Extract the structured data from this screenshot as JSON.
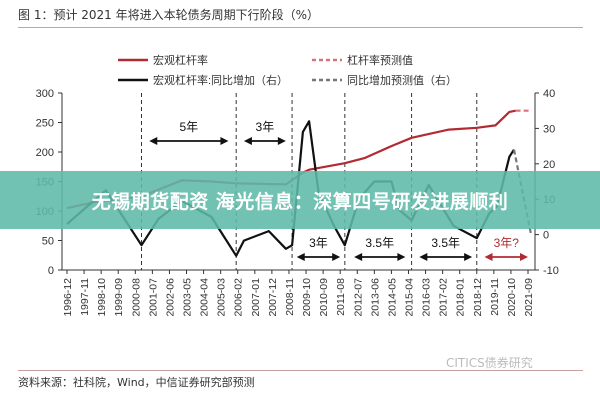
{
  "title": "图 1：预计 2021 年将进入本轮债务周期下行阶段（%）",
  "source": "资料来源：社科院，Wind，中信证券研究部预测",
  "watermark": "CITICS债券研究",
  "banner": "无锡期货配资 海光信息：深算四号研发进展顺利",
  "chart_data": {
    "type": "line",
    "title": "预计 2021 年将进入本轮债务周期下行阶段（%）",
    "legend_placement": "top",
    "grid": false,
    "left_axis": {
      "range": [
        0,
        300
      ],
      "ticks": [
        0,
        50,
        100,
        150,
        200,
        250,
        300
      ]
    },
    "right_axis": {
      "range": [
        -10,
        40
      ],
      "ticks": [
        -10,
        0,
        10,
        20,
        30,
        40
      ]
    },
    "x_tick_labels": [
      "1996-12",
      "1997-11",
      "1998-10",
      "1999-09",
      "2000-08",
      "2001-07",
      "2002-06",
      "2003-05",
      "2004-04",
      "2005-03",
      "2006-02",
      "2007-01",
      "2007-12",
      "2008-11",
      "2009-10",
      "2010-09",
      "2011-08",
      "2012-07",
      "2013-06",
      "2014-05",
      "2015-04",
      "2016-03",
      "2017-02",
      "2018-01",
      "2018-12",
      "2019-11",
      "2020-10",
      "2021-09"
    ],
    "series": [
      {
        "name": "宏观杠杆率",
        "axis": "left",
        "color": "#b22a32",
        "style": "solid",
        "x": [
          "1996-12",
          "1998-06",
          "2000-12",
          "2003-02",
          "2004-09",
          "2006-01",
          "2008-09",
          "2009-08",
          "2009-12",
          "2011-11",
          "2012-12",
          "2014-05",
          "2015-06",
          "2017-06",
          "2018-12",
          "2019-12",
          "2020-09",
          "2021-01"
        ],
        "y": [
          105,
          115,
          125,
          152,
          150,
          147,
          145,
          165,
          170,
          181,
          190,
          210,
          224,
          238,
          241,
          245,
          268,
          270
        ]
      },
      {
        "name": "杠杆率预测值",
        "axis": "left",
        "color": "#d9727c",
        "style": "dashed",
        "x": [
          "2021-01",
          "2021-11"
        ],
        "y": [
          270,
          270
        ]
      },
      {
        "name": "宏观杠杆率:同比增加（右）",
        "axis": "right",
        "color": "#111111",
        "style": "solid",
        "x": [
          "1996-12",
          "1999-01",
          "2000-12",
          "2001-11",
          "2003-02",
          "2004-09",
          "2006-01",
          "2006-06",
          "2007-10",
          "2008-09",
          "2009-01",
          "2009-08",
          "2009-12",
          "2010-06",
          "2011-04",
          "2011-11",
          "2012-08",
          "2013-06",
          "2014-05",
          "2014-10",
          "2015-06",
          "2016-05",
          "2017-09",
          "2018-12",
          "2019-08",
          "2020-01",
          "2020-09",
          "2020-12"
        ],
        "y": [
          3,
          12.5,
          -3,
          4.5,
          9.5,
          5,
          -6,
          -1.7,
          1,
          -4,
          -3,
          29,
          32,
          12,
          2.5,
          -3,
          10,
          15,
          15,
          7,
          4,
          14,
          2.5,
          -1,
          6,
          8,
          22,
          24
        ]
      },
      {
        "name": "同比增加预测值（右）",
        "axis": "right",
        "color": "#777777",
        "style": "dashed",
        "x": [
          "2020-12",
          "2021-11"
        ],
        "y": [
          24,
          0
        ]
      }
    ],
    "cycle_markers": [
      "2000-12",
      "2006-01",
      "2009-01",
      "2011-11",
      "2015-06",
      "2018-12"
    ],
    "annotations": [
      {
        "label": "5年",
        "from": "2001-05",
        "to": "2005-08",
        "color": "#111111",
        "row": "top"
      },
      {
        "label": "3年",
        "from": "2006-06",
        "to": "2008-09",
        "color": "#111111",
        "row": "top"
      },
      {
        "label": "3年",
        "from": "2009-04",
        "to": "2011-08",
        "color": "#111111",
        "row": "bottom"
      },
      {
        "label": "3.5年",
        "from": "2012-05",
        "to": "2015-02",
        "color": "#111111",
        "row": "bottom"
      },
      {
        "label": "3.5年",
        "from": "2015-11",
        "to": "2018-09",
        "color": "#111111",
        "row": "bottom"
      },
      {
        "label": "3年?",
        "from": "2019-05",
        "to": "2021-09",
        "color": "#b22a32",
        "row": "bottom"
      }
    ]
  }
}
